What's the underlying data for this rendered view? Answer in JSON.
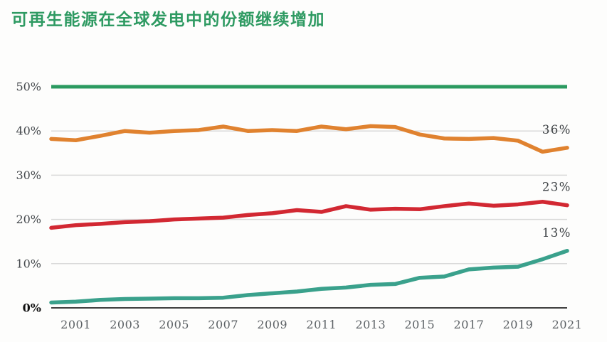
{
  "title": {
    "text": "可再生能源在全球发电中的份额继续增加",
    "color": "#2E9A62"
  },
  "chart_data": {
    "type": "line",
    "title": "可再生能源在全球发电中的份额继续增加",
    "xlabel": "",
    "ylabel": "",
    "ylim": [
      0,
      50
    ],
    "grid": "horizontal",
    "legend_position": "none",
    "years": [
      2000,
      2001,
      2002,
      2003,
      2004,
      2005,
      2006,
      2007,
      2008,
      2009,
      2010,
      2011,
      2012,
      2013,
      2014,
      2015,
      2016,
      2017,
      2018,
      2019,
      2020,
      2021
    ],
    "x_tick_labels": [
      "2001",
      "2003",
      "2005",
      "2007",
      "2009",
      "2011",
      "2013",
      "2015",
      "2017",
      "2019",
      "2021"
    ],
    "y_ticks": [
      {
        "value": 0,
        "label": "0%"
      },
      {
        "value": 10,
        "label": "10%"
      },
      {
        "value": 20,
        "label": "20%"
      },
      {
        "value": 30,
        "label": "30%"
      },
      {
        "value": 40,
        "label": "40%"
      },
      {
        "value": 50,
        "label": "50%"
      }
    ],
    "series": [
      {
        "name": "series-orange",
        "color": "#E0822F",
        "end_label": "36%",
        "values": [
          38.2,
          37.9,
          38.9,
          40.0,
          39.6,
          40.0,
          40.2,
          41.0,
          40.0,
          40.2,
          40.0,
          41.0,
          40.4,
          41.1,
          40.9,
          39.2,
          38.3,
          38.2,
          38.4,
          37.8,
          35.3,
          36.2
        ]
      },
      {
        "name": "series-red",
        "color": "#D22832",
        "end_label": "23%",
        "values": [
          18.1,
          18.7,
          19.0,
          19.4,
          19.6,
          20.0,
          20.2,
          20.4,
          21.0,
          21.4,
          22.1,
          21.7,
          23.0,
          22.2,
          22.4,
          22.3,
          23.0,
          23.6,
          23.1,
          23.4,
          24.0,
          23.2
        ]
      },
      {
        "name": "series-teal",
        "color": "#3AA18C",
        "end_label": "13%",
        "values": [
          1.2,
          1.4,
          1.8,
          2.0,
          2.1,
          2.2,
          2.2,
          2.3,
          2.9,
          3.3,
          3.7,
          4.3,
          4.6,
          5.2,
          5.4,
          6.8,
          7.1,
          8.7,
          9.1,
          9.3,
          11.0,
          12.9
        ]
      }
    ],
    "top_line_color": "#2B9A60",
    "gridline_color": "#d9d9d9",
    "axis_color": "#3f3f3f"
  }
}
